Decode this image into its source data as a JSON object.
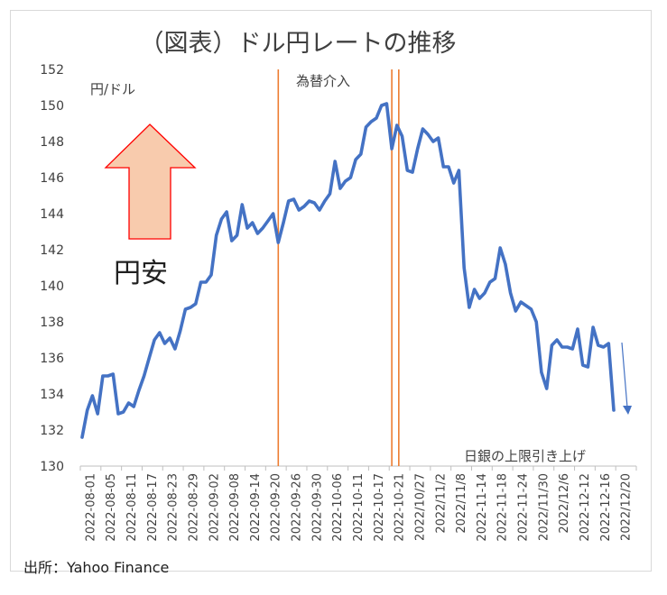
{
  "chart_data": {
    "type": "line",
    "title": "（図表）ドル円レートの推移",
    "unit_label": "円/ドル",
    "ylim": [
      130,
      152
    ],
    "yticks": [
      130,
      132,
      134,
      136,
      138,
      140,
      142,
      144,
      146,
      148,
      150,
      152
    ],
    "x_tick_labels": [
      "2022-08-01",
      "2022-08-05",
      "2022-08-11",
      "2022-08-17",
      "2022-08-23",
      "2022-08-29",
      "2022-09-02",
      "2022-09-08",
      "2022-09-14",
      "2022-09-20",
      "2022-09-26",
      "2022-09-30",
      "2022-10-06",
      "2022-10-11",
      "2022-10-17",
      "2022-10-21",
      "2022/10/27",
      "2022/11/2",
      "2022/11/8",
      "2022-11-14",
      "2022-11-18",
      "2022-11-24",
      "2022/11/30",
      "2022/12/6",
      "2022-12-12",
      "2022-12-16",
      "2022/12/20"
    ],
    "grid": false,
    "series": [
      {
        "color": "#4472c4",
        "values": [
          131.6,
          133.1,
          133.9,
          132.9,
          135.0,
          135.0,
          135.1,
          132.9,
          133.0,
          133.5,
          133.3,
          134.2,
          135.0,
          136.0,
          137.0,
          137.4,
          136.8,
          137.1,
          136.5,
          137.5,
          138.7,
          138.8,
          139.0,
          140.2,
          140.2,
          140.6,
          142.8,
          143.7,
          144.1,
          142.5,
          142.8,
          144.5,
          143.2,
          143.5,
          142.9,
          143.2,
          143.6,
          144.0,
          142.4,
          143.5,
          144.7,
          144.8,
          144.2,
          144.4,
          144.7,
          144.6,
          144.2,
          144.7,
          145.1,
          146.9,
          145.4,
          145.8,
          146.0,
          147.0,
          147.3,
          148.8,
          149.1,
          149.3,
          150.0,
          150.1,
          147.6,
          148.9,
          148.3,
          146.4,
          146.3,
          147.6,
          148.7,
          148.4,
          148.0,
          148.2,
          146.6,
          146.6,
          145.7,
          146.4,
          141.0,
          138.8,
          139.8,
          139.3,
          139.6,
          140.2,
          140.4,
          142.1,
          141.2,
          139.6,
          138.6,
          139.1,
          138.9,
          138.7,
          138.0,
          135.2,
          134.3,
          136.7,
          137.0,
          136.6,
          136.6,
          136.5,
          137.6,
          135.6,
          135.5,
          137.7,
          136.7,
          136.6,
          136.8,
          133.1
        ]
      }
    ],
    "annotations": {
      "intervention_label": "為替介入",
      "boj_label": "日銀の上限引き上げ",
      "weak_yen_label": "円安",
      "intervention_lines": [
        {
          "color": "#ed7d31",
          "at_index": 38
        },
        {
          "color": "#ed7d31",
          "at_index": 60
        },
        {
          "color": "#ed7d31",
          "at_index": 61
        }
      ]
    }
  },
  "source": "出所：Yahoo  Finance"
}
